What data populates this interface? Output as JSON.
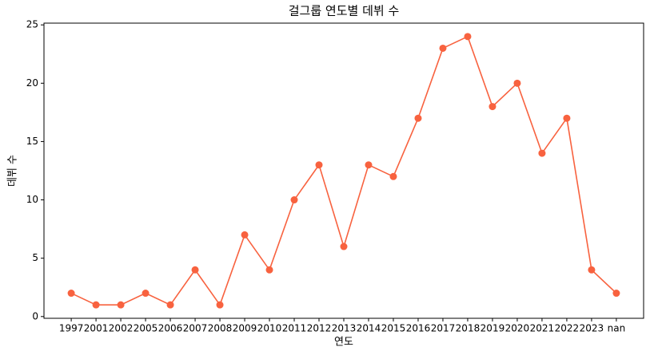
{
  "chart_data": {
    "type": "line",
    "title": "걸그룹 연도별 데뷔 수",
    "x_label": "연도",
    "y_label": "데뷔 수",
    "categories": [
      "1997",
      "2001",
      "2002",
      "2005",
      "2006",
      "2007",
      "2008",
      "2009",
      "2010",
      "2011",
      "2012",
      "2013",
      "2014",
      "2015",
      "2016",
      "2017",
      "2018",
      "2019",
      "2020",
      "2021",
      "2022",
      "2023",
      "nan"
    ],
    "values": [
      2,
      1,
      1,
      2,
      1,
      4,
      1,
      7,
      4,
      10,
      13,
      6,
      13,
      12,
      17,
      23,
      24,
      18,
      20,
      14,
      17,
      4,
      2
    ],
    "color": "#f8623f",
    "ylim": [
      -0.15,
      25.15
    ],
    "yticks": [
      0,
      5,
      10,
      15,
      20,
      25
    ],
    "grid": false
  }
}
